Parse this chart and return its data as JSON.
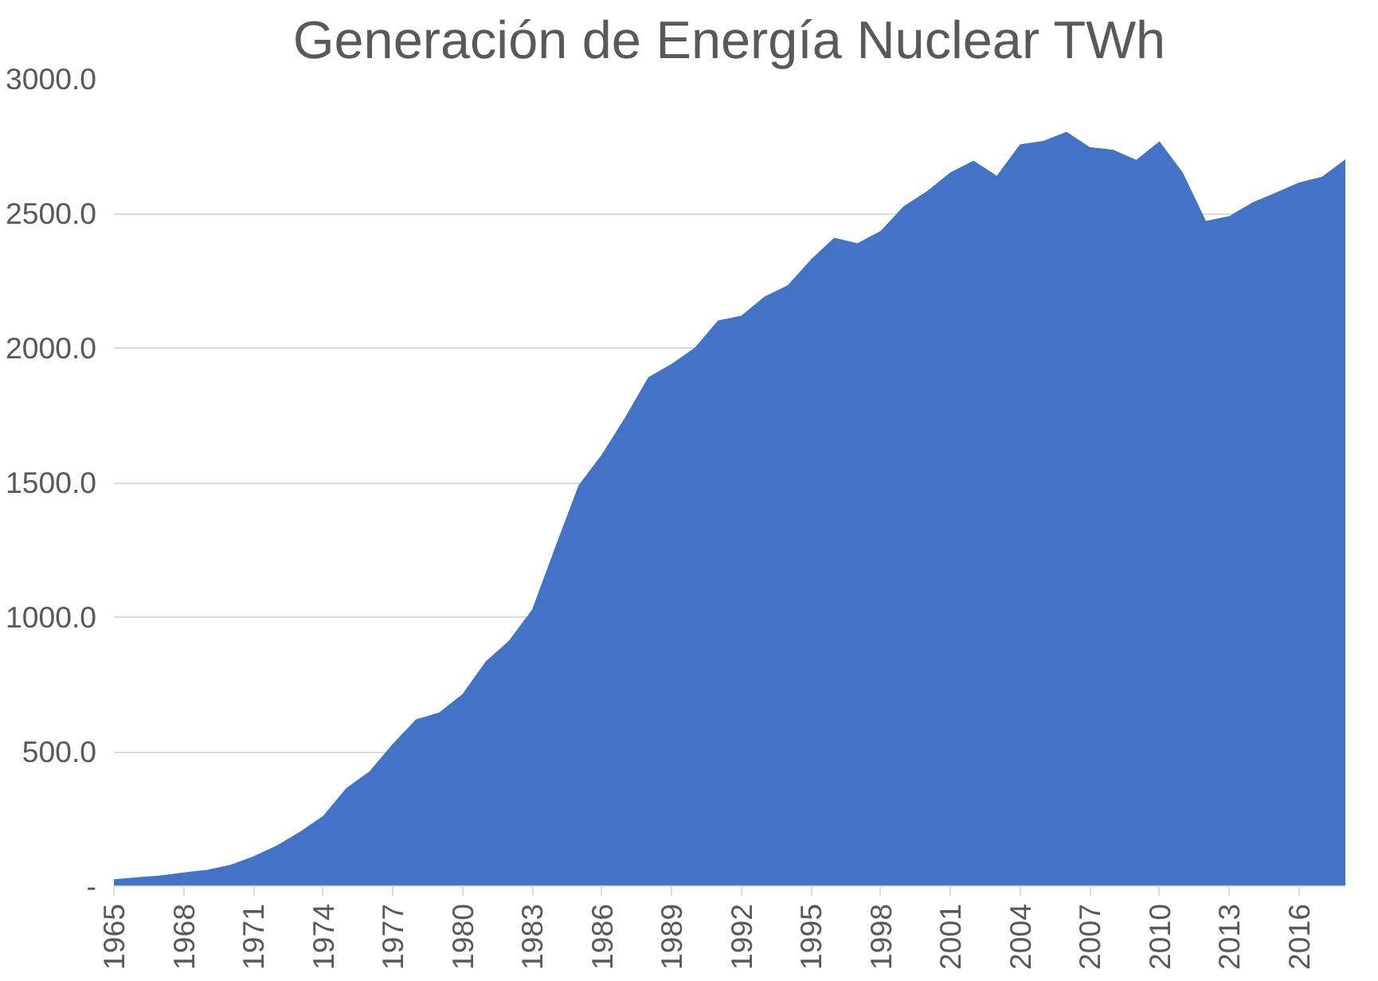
{
  "chart_data": {
    "type": "area",
    "title": "Generación de Energía Nuclear TWh",
    "x": [
      1965,
      1966,
      1967,
      1968,
      1969,
      1970,
      1971,
      1972,
      1973,
      1974,
      1975,
      1976,
      1977,
      1978,
      1979,
      1980,
      1981,
      1982,
      1983,
      1984,
      1985,
      1986,
      1987,
      1988,
      1989,
      1990,
      1991,
      1992,
      1993,
      1994,
      1995,
      1996,
      1997,
      1998,
      1999,
      2000,
      2001,
      2002,
      2003,
      2004,
      2005,
      2006,
      2007,
      2008,
      2009,
      2010,
      2011,
      2012,
      2013,
      2014,
      2015,
      2016,
      2017,
      2018
    ],
    "series": [
      {
        "color": "#4472c4",
        "values": [
          26,
          33,
          40,
          51,
          61,
          79,
          111,
          151,
          202,
          261,
          365,
          427,
          529,
          620,
          646,
          714,
          835,
          912,
          1028,
          1262,
          1490,
          1604,
          1742,
          1891,
          1941,
          2001,
          2102,
          2120,
          2191,
          2233,
          2329,
          2410,
          2389,
          2435,
          2527,
          2583,
          2652,
          2696,
          2640,
          2757,
          2769,
          2803,
          2746,
          2737,
          2699,
          2768,
          2652,
          2472,
          2490,
          2541,
          2577,
          2615,
          2636,
          2701
        ]
      }
    ],
    "xlim": [
      1965,
      2018
    ],
    "xticks": [
      1965,
      1968,
      1971,
      1974,
      1977,
      1980,
      1983,
      1986,
      1989,
      1992,
      1995,
      1998,
      2001,
      2004,
      2007,
      2010,
      2013,
      2016
    ],
    "ylim": [
      0,
      3000
    ],
    "yticks": [
      {
        "value": 0,
        "label": "-"
      },
      {
        "value": 500,
        "label": "500.0"
      },
      {
        "value": 1000,
        "label": "1000.0"
      },
      {
        "value": 1500,
        "label": "1500.0"
      },
      {
        "value": 2000,
        "label": "2000.0"
      },
      {
        "value": 2500,
        "label": "2500.0"
      },
      {
        "value": 3000,
        "label": "3000.0"
      }
    ],
    "grid": "y"
  }
}
